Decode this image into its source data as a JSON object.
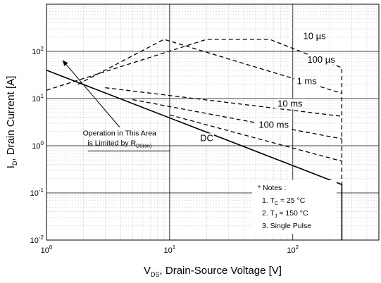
{
  "chart_data": {
    "type": "line",
    "title": "",
    "xscale": "log",
    "yscale": "log",
    "xlim": [
      1,
      500
    ],
    "ylim": [
      0.01,
      1000
    ],
    "grid": true,
    "xlabel": {
      "main": "V",
      "sub": "DS",
      "rest": ", Drain-Source Voltage [V]"
    },
    "ylabel": {
      "main": "I",
      "sub": "D",
      "rest": ", Drain Current [A]"
    },
    "xticks": [
      {
        "base": "10",
        "exp": "0",
        "value": 1
      },
      {
        "base": "10",
        "exp": "1",
        "value": 10
      },
      {
        "base": "10",
        "exp": "2",
        "value": 100
      }
    ],
    "yticks": [
      {
        "base": "10",
        "exp": "-2",
        "value": 0.01
      },
      {
        "base": "10",
        "exp": "-1",
        "value": 0.1
      },
      {
        "base": "10",
        "exp": "0",
        "value": 1
      },
      {
        "base": "10",
        "exp": "1",
        "value": 10
      },
      {
        "base": "10",
        "exp": "2",
        "value": 100
      }
    ],
    "series": [
      {
        "name": "10 µs",
        "style": "dashed",
        "x": [
          1,
          20,
          65,
          250,
          250
        ],
        "y": [
          15,
          180,
          180,
          45,
          0.15
        ]
      },
      {
        "name": "100 µs",
        "style": "dashed",
        "x": [
          1.8,
          9,
          250
        ],
        "y": [
          20,
          180,
          13
        ]
      },
      {
        "name": "1 ms",
        "style": "dashed",
        "x": [
          3,
          250
        ],
        "y": [
          17,
          4.2
        ]
      },
      {
        "name": "10 ms",
        "style": "dashed",
        "x": [
          5,
          250
        ],
        "y": [
          9.5,
          1.4
        ]
      },
      {
        "name": "100 ms",
        "style": "dashed",
        "x": [
          10,
          250
        ],
        "y": [
          4.5,
          0.47
        ]
      },
      {
        "name": "DC",
        "style": "solid",
        "x": [
          1,
          250,
          250
        ],
        "y": [
          40,
          0.15,
          0.01
        ]
      }
    ],
    "series_labels": [
      {
        "series": 0,
        "x": 150,
        "y": 190
      },
      {
        "series": 1,
        "x": 170,
        "y": 60
      },
      {
        "series": 2,
        "x": 130,
        "y": 21
      },
      {
        "series": 3,
        "x": 95,
        "y": 7
      },
      {
        "series": 4,
        "x": 70,
        "y": 2.5
      },
      {
        "series": 5,
        "x": 20,
        "y": 1.3
      }
    ],
    "annotation": {
      "line1": "Operation in This Area",
      "line2": "is Limited by R",
      "sub": "DS(on)",
      "anchor": {
        "x": 1.9,
        "y": 0.95
      },
      "arrow_to": {
        "x": 1.35,
        "y": 65
      },
      "underline_to": {
        "x": 10,
        "y": 0.95
      }
    },
    "notes": {
      "title": "* Notes :",
      "items": [
        {
          "prefix": "1. T",
          "sub": "C",
          "rest": " = 25 °C"
        },
        {
          "prefix": "2. T",
          "sub": "J",
          "rest": " = 150 °C"
        },
        {
          "prefix": "3. Single Pulse",
          "sub": "",
          "rest": ""
        }
      ]
    }
  }
}
